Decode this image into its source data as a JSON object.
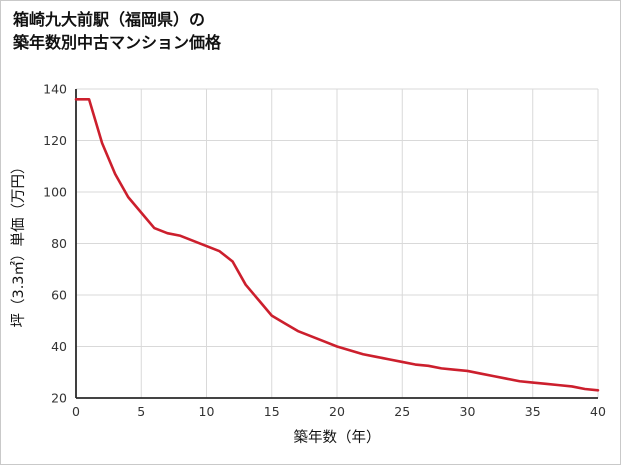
{
  "title": {
    "line1": "箱崎九大前駅（福岡県）の",
    "line2": "築年数別中古マンション価格"
  },
  "chart_data": {
    "type": "line",
    "title": "箱崎九大前駅（福岡県）の築年数別中古マンション価格",
    "xlabel": "築年数（年）",
    "ylabel": "坪（3.3㎡）単価（万円）",
    "xlim": [
      0,
      40
    ],
    "ylim": [
      20,
      140
    ],
    "xticks": [
      0,
      5,
      10,
      15,
      20,
      25,
      30,
      35,
      40
    ],
    "yticks": [
      20,
      40,
      60,
      80,
      100,
      120,
      140
    ],
    "grid": true,
    "legend": "none",
    "x": [
      0,
      1,
      2,
      3,
      4,
      5,
      6,
      7,
      8,
      9,
      10,
      11,
      12,
      13,
      14,
      15,
      16,
      17,
      18,
      19,
      20,
      21,
      22,
      23,
      24,
      25,
      26,
      27,
      28,
      29,
      30,
      31,
      32,
      33,
      34,
      35,
      36,
      37,
      38,
      39,
      40
    ],
    "y": [
      136,
      136,
      119,
      107,
      98,
      92,
      86,
      84,
      83,
      81,
      79,
      77,
      73,
      64,
      58,
      52,
      49,
      46,
      44,
      42,
      40,
      38.5,
      37,
      36,
      35,
      34,
      33,
      32.5,
      31.5,
      31,
      30.5,
      29.5,
      28.5,
      27.5,
      26.5,
      26,
      25.5,
      25,
      24.5,
      23.5,
      23
    ],
    "colors": {
      "line": "#cc1f2d",
      "grid": "#d9d9d9",
      "axis": "#2a2a2a",
      "tick_text": "#333333",
      "title_text": "#111111",
      "border": "#c9c9c9"
    }
  }
}
